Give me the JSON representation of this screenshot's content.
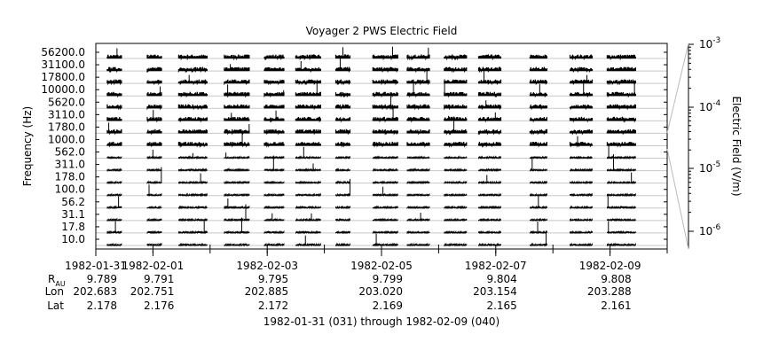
{
  "chart_data": {
    "type": "stacked-line-spectrogram",
    "title": "Voyager 2 PWS Electric Field",
    "ylabel": "Frequency (Hz)",
    "colorbar_label": "Electric Field (V/m)",
    "colorbar_scale": "log",
    "colorbar_ticks": [
      {
        "base": "10",
        "exp": "-3",
        "value": 0.001
      },
      {
        "base": "10",
        "exp": "-4",
        "value": 0.0001
      },
      {
        "base": "10",
        "exp": "-5",
        "value": 1e-05
      },
      {
        "base": "10",
        "exp": "-6",
        "value": 1e-06
      }
    ],
    "channels": [
      "56200.0",
      "31100.0",
      "17800.0",
      "10000.0",
      "5620.0",
      "3110.0",
      "1780.0",
      "1000.0",
      "562.0",
      "311.0",
      "178.0",
      "100.0",
      "56.2",
      "31.1",
      "17.8",
      "10.0"
    ],
    "x_range": [
      "1982-01-31",
      "1982-02-10"
    ],
    "x_ticks": [
      "1982-01-31",
      "1982-02-01",
      "1982-02-03",
      "1982-02-05",
      "1982-02-07",
      "1982-02-09"
    ],
    "ephemeris_labels": {
      "r": "R",
      "r_sub": "AU",
      "lon": "Lon",
      "lat": "Lat"
    },
    "ephemeris": [
      {
        "date": "1982-01-31",
        "r": "9.789",
        "lon": "202.683",
        "lat": "2.178"
      },
      {
        "date": "1982-02-01",
        "r": "9.791",
        "lon": "202.751",
        "lat": "2.176"
      },
      {
        "date": "1982-02-03",
        "r": "9.795",
        "lon": "202.885",
        "lat": "2.172"
      },
      {
        "date": "1982-02-05",
        "r": "9.799",
        "lon": "203.020",
        "lat": "2.169"
      },
      {
        "date": "1982-02-07",
        "r": "9.804",
        "lon": "203.154",
        "lat": "2.165"
      },
      {
        "date": "1982-02-09",
        "r": "9.808",
        "lon": "203.288",
        "lat": "2.161"
      }
    ],
    "data_segments_days": [
      [
        0.2,
        0.45
      ],
      [
        0.9,
        1.15
      ],
      [
        1.45,
        1.95
      ],
      [
        2.25,
        2.7
      ],
      [
        2.95,
        3.3
      ],
      [
        3.5,
        3.95
      ],
      [
        4.2,
        4.45
      ],
      [
        4.85,
        5.3
      ],
      [
        5.45,
        5.85
      ],
      [
        6.1,
        6.5
      ],
      [
        6.7,
        7.1
      ],
      [
        7.6,
        7.9
      ],
      [
        8.3,
        8.7
      ],
      [
        8.95,
        9.45
      ]
    ],
    "footer": "1982-01-31 (031) through 1982-02-09 (040)"
  }
}
